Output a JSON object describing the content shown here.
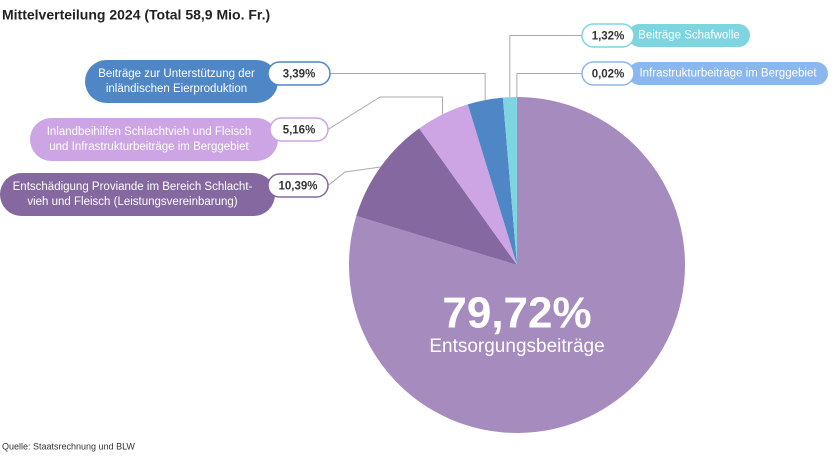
{
  "chart_data": {
    "type": "pie",
    "title": "Mittelverteilung 2024 (Total 58,9 Mio. Fr.)",
    "source": "Quelle: Staatsrechnung und BLW",
    "categories": [
      [
        "Entsorgungsbeiträge"
      ],
      [
        "Entschädigung Proviande im Bereich Schlacht-",
        "vieh und Fleisch (Leistungsvereinbarung)"
      ],
      [
        "Inlandbeihilfen Schlachtvieh und Fleisch",
        "und Infrastrukturbeiträge im Berggebiet"
      ],
      [
        "Beiträge zur Unterstützung der",
        "inländischen Eierproduktion"
      ],
      [
        "Beiträge Schafwolle"
      ],
      [
        "Infrastrukturbeiträge im Berggebiet"
      ]
    ],
    "values": [
      79.72,
      10.39,
      5.16,
      3.39,
      1.32,
      0.02
    ],
    "value_labels": [
      "79,72%",
      "10,39%",
      "5,16%",
      "3,39%",
      "1,32%",
      "0,02%"
    ],
    "colors": [
      "#a68bbf",
      "#84689f",
      "#cda4e4",
      "#4e86c6",
      "#7dd5df",
      "#8ab8ee"
    ]
  }
}
